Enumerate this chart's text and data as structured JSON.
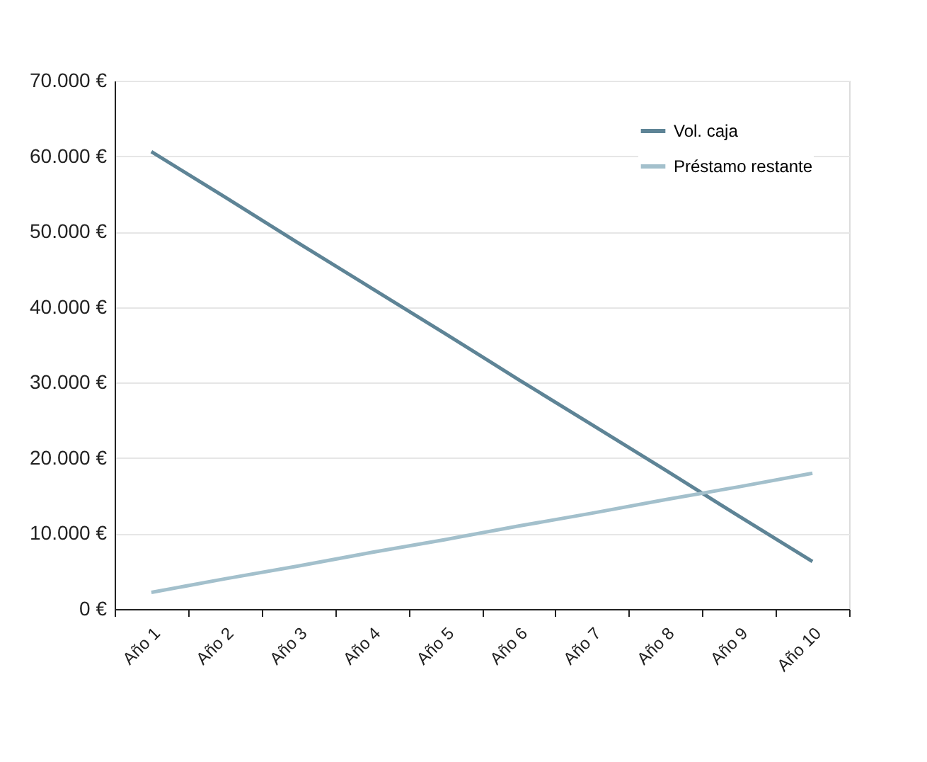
{
  "chart_data": {
    "type": "line",
    "categories": [
      "Año 1",
      "Año 2",
      "Año 3",
      "Año 4",
      "Año 5",
      "Año 6",
      "Año 7",
      "Año 8",
      "Año 9",
      "Año 10"
    ],
    "series": [
      {
        "name": "Vol. caja",
        "color": "#5e8496",
        "values": [
          60600,
          54600,
          48500,
          42500,
          36500,
          30400,
          24400,
          18400,
          12300,
          6300
        ]
      },
      {
        "name": "Préstamo restante",
        "color": "#a3c0cc",
        "values": [
          2200,
          4000,
          5700,
          7500,
          9200,
          11000,
          12700,
          14500,
          16200,
          18000
        ]
      }
    ],
    "ylim": [
      0,
      70000
    ],
    "yticks": [
      {
        "value": 0,
        "label": "0 €"
      },
      {
        "value": 10000,
        "label": "10.000 €"
      },
      {
        "value": 20000,
        "label": "20.000 €"
      },
      {
        "value": 30000,
        "label": "30.000 €"
      },
      {
        "value": 40000,
        "label": "40.000 €"
      },
      {
        "value": 50000,
        "label": "50.000 €"
      },
      {
        "value": 60000,
        "label": "60.000 €"
      },
      {
        "value": 70000,
        "label": "70.000 €"
      }
    ],
    "grid": "y",
    "legend": "top right",
    "marker": "none",
    "line_style": "solid"
  }
}
